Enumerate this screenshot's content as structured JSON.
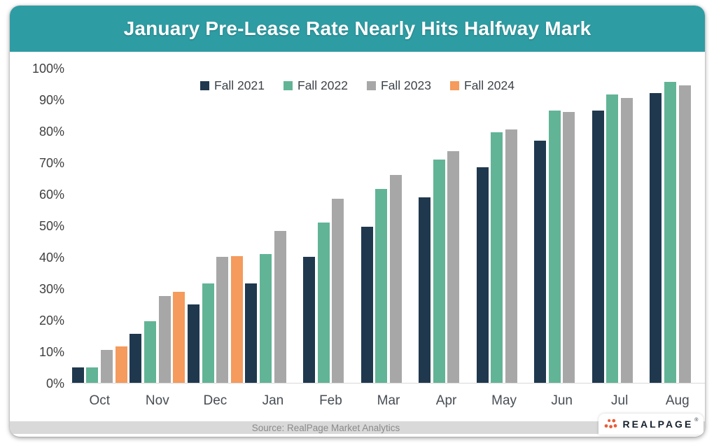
{
  "title": "January Pre-Lease Rate Nearly Hits Halfway Mark",
  "source": "Source: RealPage Market Analytics",
  "logo": {
    "text": "REALPAGE",
    "registered": "®"
  },
  "colors": {
    "header_teal": "#2e9ca3",
    "fall2021_navy": "#1f384e",
    "fall2022_green": "#62b496",
    "fall2023_gray": "#a7a7a7",
    "fall2024_orange": "#f49b5d",
    "axis_line": "#d9d9d9",
    "source_band": "#d9d9d9",
    "source_text": "#8a8a8a",
    "logo_dot": "#e85c38"
  },
  "chart_data": {
    "type": "bar",
    "title": "January Pre-Lease Rate Nearly Hits Halfway Mark",
    "categories": [
      "Oct",
      "Nov",
      "Dec",
      "Jan",
      "Feb",
      "Mar",
      "Apr",
      "May",
      "Jun",
      "Jul",
      "Aug"
    ],
    "series": [
      {
        "name": "Fall 2021",
        "color": "#1f384e",
        "values": [
          5,
          15.5,
          25,
          31.5,
          40,
          49.5,
          59,
          68.5,
          77,
          86.5,
          92
        ]
      },
      {
        "name": "Fall 2022",
        "color": "#62b496",
        "values": [
          5,
          19.5,
          31.5,
          41,
          51,
          61.5,
          71,
          79.5,
          86.4,
          91.6,
          95.5
        ]
      },
      {
        "name": "Fall 2023",
        "color": "#a7a7a7",
        "values": [
          10.5,
          27.5,
          40,
          48.2,
          58.5,
          66,
          73.5,
          80.4,
          86,
          90.5,
          94.5
        ]
      },
      {
        "name": "Fall 2024",
        "color": "#f49b5d",
        "values": [
          11.6,
          29,
          40.3,
          null,
          null,
          null,
          null,
          null,
          null,
          null,
          null
        ]
      }
    ],
    "xlabel": "",
    "ylabel": "",
    "ylim": [
      0,
      100
    ],
    "yticks": [
      0,
      10,
      20,
      30,
      40,
      50,
      60,
      70,
      80,
      90,
      100
    ],
    "ytick_format": "percent",
    "grid": false,
    "legend_position": "top-center"
  }
}
